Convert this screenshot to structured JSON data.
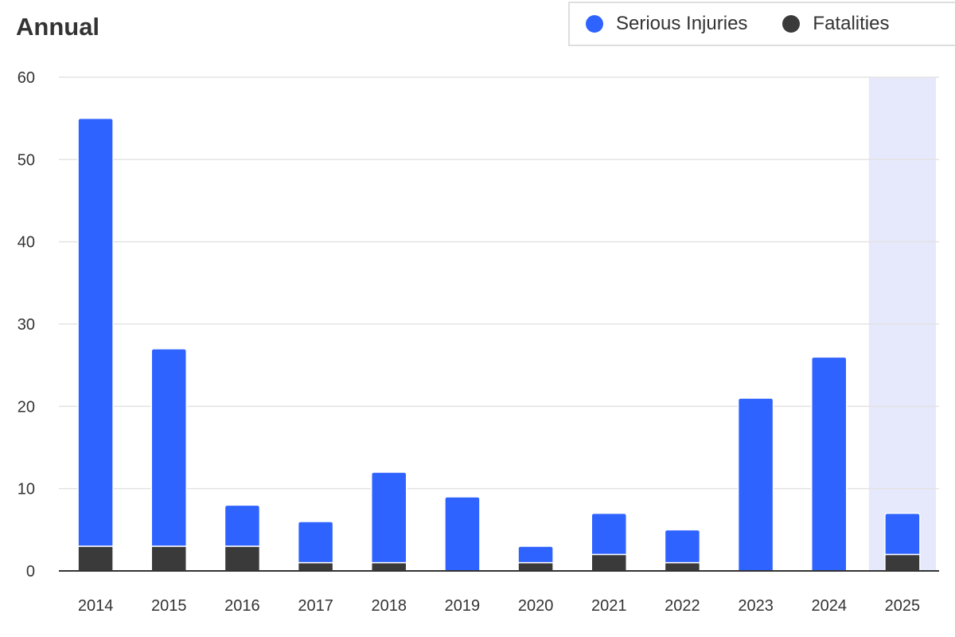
{
  "chart_data": {
    "type": "bar",
    "stacked": true,
    "title": "Annual",
    "xlabel": "",
    "ylabel": "",
    "categories": [
      "2014",
      "2015",
      "2016",
      "2017",
      "2018",
      "2019",
      "2020",
      "2021",
      "2022",
      "2023",
      "2024",
      "2025"
    ],
    "series": [
      {
        "name": "Fatalities",
        "color": "#3a3a3a",
        "values": [
          3,
          3,
          3,
          1,
          1,
          0,
          1,
          2,
          1,
          0,
          0,
          2
        ]
      },
      {
        "name": "Serious Injuries",
        "color": "#2f63ff",
        "values": [
          52,
          24,
          5,
          5,
          11,
          9,
          2,
          5,
          4,
          21,
          26,
          5
        ]
      }
    ],
    "ylim": [
      0,
      60
    ],
    "yticks": [
      "0",
      "10",
      "20",
      "30",
      "40",
      "50",
      "60"
    ],
    "grid": true,
    "legend_position": "top-right",
    "highlighted_category": "2025",
    "highlight_color": "#e6e8fc",
    "legend": [
      {
        "label": "Serious Injuries",
        "color": "#2f63ff"
      },
      {
        "label": "Fatalities",
        "color": "#3a3a3a"
      }
    ]
  }
}
